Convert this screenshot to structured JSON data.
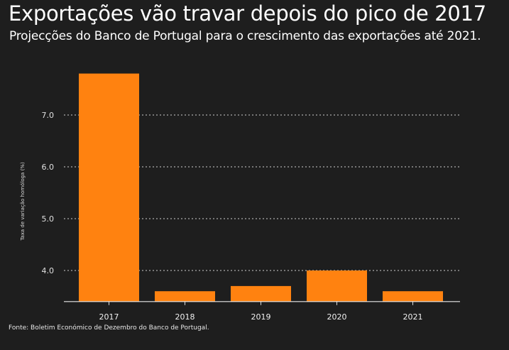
{
  "chart_data": {
    "type": "bar",
    "title": "Exportações vão travar depois do pico de 2017",
    "subtitle": "Projecções do Banco de Portugal para o crescimento das exportações até 2021.",
    "xlabel": "",
    "ylabel": "Taxa de variação homóloga (%)",
    "categories": [
      "2017",
      "2018",
      "2019",
      "2020",
      "2021"
    ],
    "values": [
      7.8,
      3.6,
      3.7,
      4.0,
      3.6
    ],
    "ylim": [
      3.4,
      8.0
    ],
    "yticks": [
      4.0,
      5.0,
      6.0,
      7.0
    ],
    "ytick_labels": [
      "4.0",
      "5.0",
      "6.0",
      "7.0"
    ],
    "grid": true,
    "bar_color": "#ff8210",
    "source": "Fonte: Boletim Económico de Dezembro do Banco de Portugal."
  }
}
